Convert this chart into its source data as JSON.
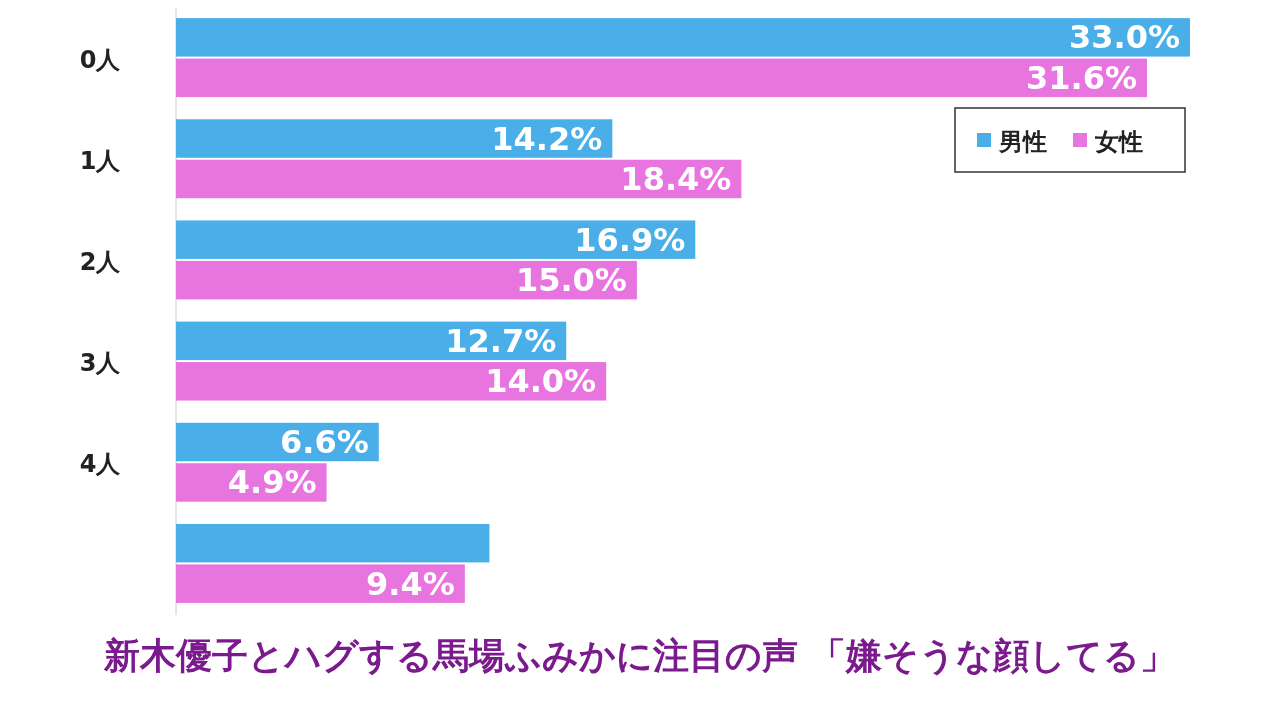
{
  "chart_data": {
    "type": "bar",
    "orientation": "horizontal",
    "legend": "top right",
    "categories": [
      "0人",
      "1人",
      "2人",
      "3人",
      "4人",
      null
    ],
    "series": [
      {
        "name": "男性",
        "color": "#4aaee8",
        "values": [
          33.0,
          14.2,
          16.9,
          12.7,
          6.6,
          10.2
        ],
        "value_labels": [
          "33.0%",
          "14.2%",
          "16.9%",
          "12.7%",
          "6.6%",
          null
        ]
      },
      {
        "name": "女性",
        "color": "#e874e0",
        "values": [
          31.6,
          18.4,
          15.0,
          14.0,
          4.9,
          9.4
        ],
        "value_labels": [
          "31.6%",
          "18.4%",
          "15.0%",
          "14.0%",
          "4.9%",
          "9.4%"
        ]
      }
    ],
    "annotations": [
      "新木優子とハグする馬場ふみかに注目の声 「嫌そうな顔してる」"
    ]
  }
}
